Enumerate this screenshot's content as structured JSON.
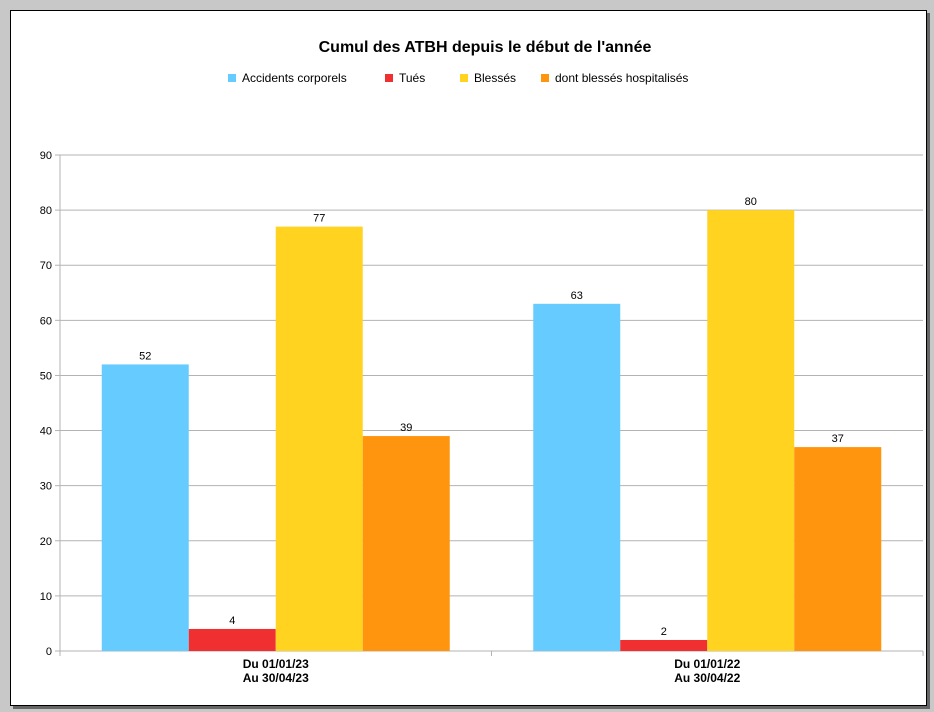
{
  "chart_data": {
    "type": "bar",
    "title": "Cumul des ATBH depuis le début de l'année",
    "categories": [
      [
        "Du 01/01/23",
        "Au 30/04/23"
      ],
      [
        "Du 01/01/22",
        "Au 30/04/22"
      ]
    ],
    "series": [
      {
        "name": "Accidents corporels",
        "color": "#66ccff",
        "values": [
          52,
          63
        ]
      },
      {
        "name": "Tués",
        "color": "#f03030",
        "values": [
          4,
          2
        ]
      },
      {
        "name": "Blessés",
        "color": "#ffd320",
        "values": [
          77,
          80
        ]
      },
      {
        "name": "dont blessés hospitalisés",
        "color": "#ff950e",
        "values": [
          39,
          37
        ]
      }
    ],
    "ylim": [
      0,
      90
    ],
    "yticks": [
      0,
      10,
      20,
      30,
      40,
      50,
      60,
      70,
      80,
      90
    ],
    "grid": true,
    "legend_position": "top-center",
    "xlabel": "",
    "ylabel": ""
  }
}
